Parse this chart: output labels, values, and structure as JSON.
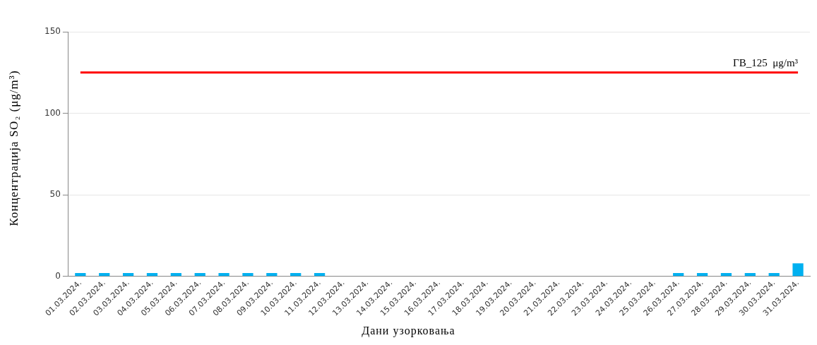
{
  "chart_data": {
    "type": "bar",
    "xlabel": "Дани узорковања",
    "ylabel": "Концентрација SO₂  (μg/m³)",
    "categories": [
      "01.03.2024.",
      "02.03.2024.",
      "03.03.2024.",
      "04.03.2024.",
      "05.03.2024.",
      "06.03.2024.",
      "07.03.2024.",
      "08.03.2024.",
      "09.03.2024.",
      "10.03.2024.",
      "11.03.2024.",
      "12.03.2024.",
      "13.03.2024.",
      "14.03.2024.",
      "15.03.2024.",
      "16.03.2024.",
      "17.03.2024.",
      "18.03.2024.",
      "19.03.2024.",
      "20.03.2024.",
      "21.03.2024.",
      "22.03.2024.",
      "23.03.2024.",
      "24.03.2024.",
      "25.03.2024.",
      "26.03.2024.",
      "27.03.2024.",
      "28.03.2024.",
      "29.03.2024.",
      "30.03.2024.",
      "31.03.2024."
    ],
    "values": [
      2,
      2,
      2,
      2,
      2,
      2,
      2,
      2,
      2,
      2,
      2,
      null,
      null,
      null,
      null,
      null,
      null,
      null,
      null,
      null,
      null,
      null,
      null,
      null,
      null,
      2,
      2,
      2,
      2,
      2,
      8
    ],
    "color": "#00b0f0",
    "ylim": [
      0,
      150
    ],
    "yticks": [
      0,
      50,
      100,
      150
    ],
    "grid": "y",
    "legend": false,
    "ref_lines": [
      {
        "axis": "y",
        "value": 125,
        "label": "ГВ_125  μg/m³",
        "color": "#ff0000"
      }
    ]
  }
}
